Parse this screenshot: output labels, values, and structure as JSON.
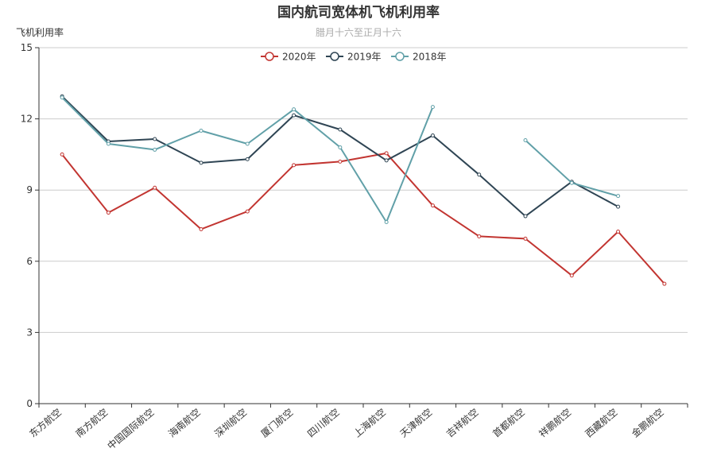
{
  "chart_data": {
    "type": "line",
    "title": "国内航司宽体机飞机利用率",
    "subtitle": "腊月十六至正月十六",
    "ylabel": "飞机利用率",
    "xlabel": "",
    "ylim": [
      0,
      15
    ],
    "yticks": [
      0,
      3,
      6,
      9,
      12,
      15
    ],
    "legend_position": "top-center",
    "grid": true,
    "categories": [
      "东方航空",
      "南方航空",
      "中国国际航空",
      "海南航空",
      "深圳航空",
      "厦门航空",
      "四川航空",
      "上海航空",
      "天津航空",
      "吉祥航空",
      "首都航空",
      "祥鹏航空",
      "西藏航空",
      "金鹏航空"
    ],
    "series": [
      {
        "name": "2020年",
        "color": "#c23531",
        "values": [
          10.5,
          8.05,
          9.1,
          7.35,
          8.1,
          10.05,
          10.2,
          10.55,
          8.35,
          7.05,
          6.95,
          5.4,
          7.25,
          5.05
        ]
      },
      {
        "name": "2019年",
        "color": "#2f4554",
        "values": [
          12.95,
          11.05,
          11.15,
          10.15,
          10.3,
          12.15,
          11.55,
          10.25,
          11.3,
          9.65,
          7.9,
          9.35,
          8.3,
          null
        ]
      },
      {
        "name": "2018年",
        "color": "#61a0a8",
        "values": [
          12.9,
          10.95,
          10.7,
          11.5,
          10.95,
          12.4,
          10.8,
          7.65,
          12.5,
          null,
          11.1,
          9.3,
          8.75,
          null
        ]
      }
    ]
  }
}
